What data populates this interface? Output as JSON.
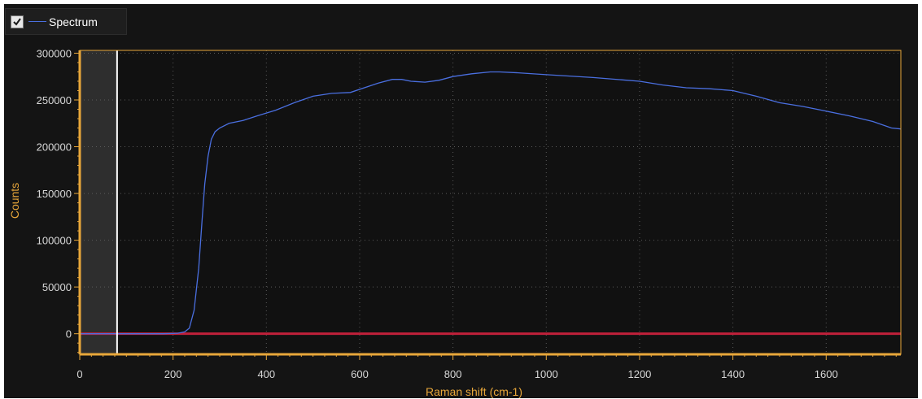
{
  "legend": {
    "label": "Spectrum",
    "checked": true,
    "series_color": "#4a6fe0"
  },
  "colors": {
    "background": "#141414",
    "axis": "#e8a73a",
    "grid": "#5a5a5a",
    "series": "#4a6fe0",
    "baseline": "#c0203a",
    "cursor": "#ffffff"
  },
  "chart_data": {
    "type": "line",
    "title": "",
    "xlabel": "Raman shift (cm-1)",
    "ylabel": "Counts",
    "xlim": [
      0,
      1760
    ],
    "ylim": [
      -22000,
      303000
    ],
    "x_ticks": [
      0,
      200,
      400,
      600,
      800,
      1000,
      1200,
      1400,
      1600
    ],
    "y_ticks": [
      0,
      50000,
      100000,
      150000,
      200000,
      250000,
      300000
    ],
    "x_tick_labels": [
      "0",
      "200",
      "400",
      "600",
      "800",
      "1000",
      "1200",
      "1400",
      "1600"
    ],
    "y_tick_labels": [
      "0",
      "50000",
      "100000",
      "150000",
      "200000",
      "250000",
      "300000"
    ],
    "grid": true,
    "legend_position": "top-left",
    "cursor_x": 80,
    "shaded_region": [
      0,
      80
    ],
    "series": [
      {
        "name": "Spectrum",
        "color": "#4a6fe0",
        "x": [
          0,
          100,
          180,
          210,
          225,
          235,
          245,
          255,
          262,
          268,
          275,
          282,
          290,
          300,
          320,
          350,
          380,
          420,
          460,
          500,
          540,
          580,
          610,
          640,
          670,
          690,
          710,
          740,
          770,
          800,
          840,
          880,
          900,
          940,
          1000,
          1100,
          1200,
          1250,
          1300,
          1350,
          1400,
          1450,
          1500,
          1550,
          1600,
          1650,
          1700,
          1740,
          1760
        ],
        "y": [
          0,
          0,
          0,
          500,
          2000,
          6000,
          25000,
          70000,
          120000,
          160000,
          190000,
          208000,
          216000,
          220000,
          225000,
          228000,
          233000,
          239000,
          247000,
          254000,
          257000,
          258000,
          263000,
          268000,
          272000,
          272000,
          270000,
          269000,
          271000,
          275000,
          278000,
          280000,
          280000,
          279000,
          277000,
          274000,
          270000,
          266000,
          263000,
          262000,
          260000,
          254000,
          247000,
          243000,
          238000,
          233000,
          227000,
          220000,
          219000
        ]
      },
      {
        "name": "",
        "color": "#c0203a",
        "x": [
          0,
          1760
        ],
        "y": [
          0,
          0
        ]
      }
    ]
  }
}
